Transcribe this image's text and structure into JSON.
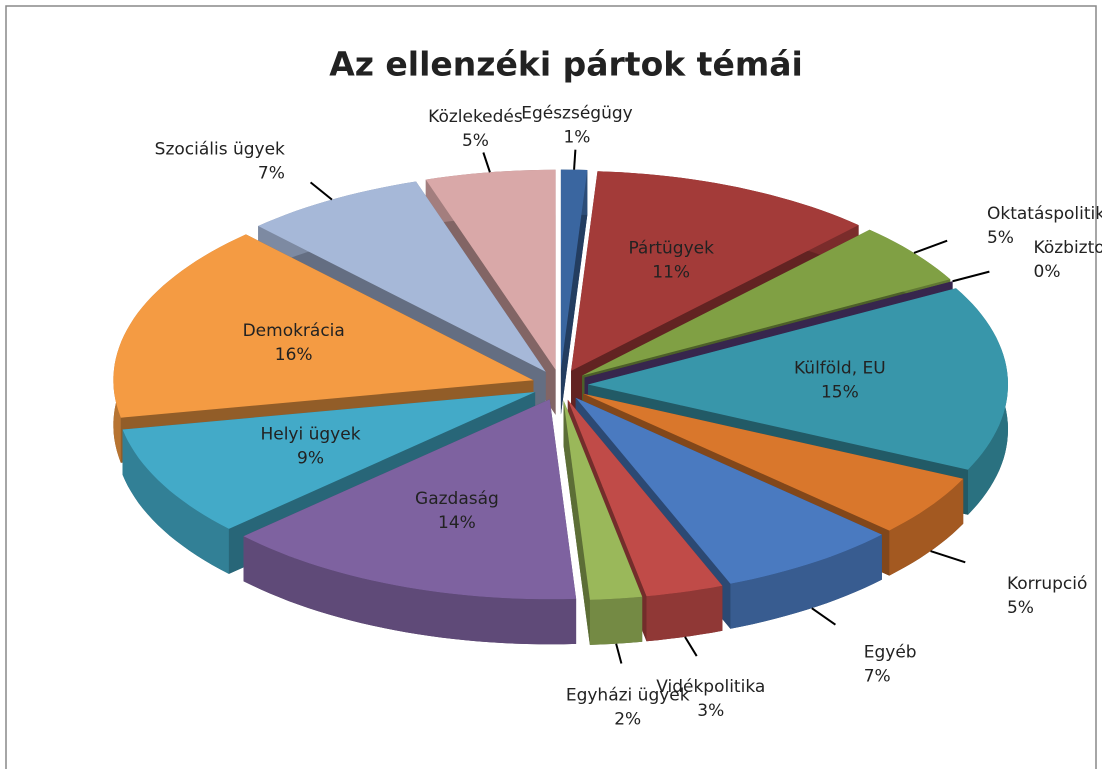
{
  "chart_data": {
    "type": "pie",
    "title": "Az ellenzéki pártok témái",
    "categories": [
      "Egészségügy",
      "Pártügyek",
      "Oktatáspolitika",
      "Közbiztonság",
      "Külföld, EU",
      "Korrupció",
      "Egyéb",
      "Vidékpolitika",
      "Egyházi ügyek",
      "Gazdaság",
      "Helyi ügyek",
      "Demokrácia",
      "Szociális ügyek",
      "Közlekedés"
    ],
    "values": [
      1,
      11,
      5,
      0,
      15,
      5,
      7,
      3,
      2,
      14,
      9,
      16,
      7,
      5
    ],
    "value_labels": [
      "1%",
      "11%",
      "5%",
      "0%",
      "15%",
      "5%",
      "7%",
      "3%",
      "2%",
      "14%",
      "9%",
      "16%",
      "7%",
      "5%"
    ],
    "colors": [
      "#3a66a0",
      "#a33b39",
      "#80a044",
      "#5c4080",
      "#3896aa",
      "#d9772c",
      "#4a7ac0",
      "#c04b48",
      "#9ab85a",
      "#7e62a0",
      "#43aac8",
      "#f49b43",
      "#a6b8d8",
      "#d9a8a8"
    ]
  }
}
